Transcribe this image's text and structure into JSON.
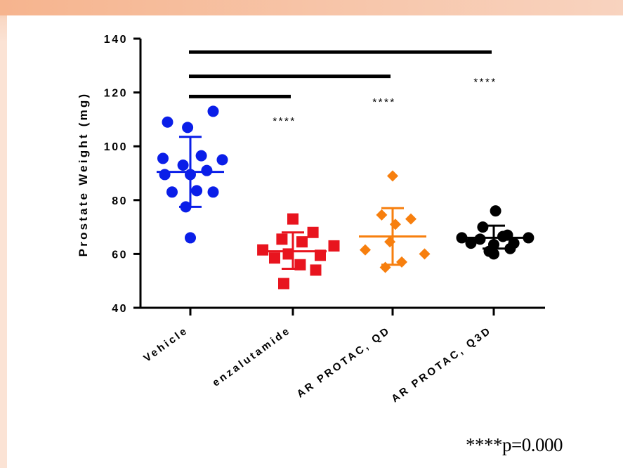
{
  "colors": {
    "background": "#fbe3d5",
    "panel": "#ffffff",
    "Vehicle": "#0a1ee8",
    "enzalutamide": "#e8141e",
    "AR PROTAC, QD": "#f77f0e",
    "AR PROTAC, Q3D": "#000000"
  },
  "footnote": {
    "stars": "****",
    "text": "p=0.000"
  },
  "chart_data": {
    "type": "scatter",
    "title": "",
    "xlabel": "",
    "ylabel": "Prostate Weight (mg)",
    "ylim": [
      40,
      140
    ],
    "yticks": [
      "40",
      "60",
      "80",
      "100",
      "120",
      "140"
    ],
    "ytick_values": [
      40,
      60,
      80,
      100,
      120,
      140
    ],
    "categories": [
      "Vehicle",
      "enzalutamide",
      "AR PROTAC, QD",
      "AR PROTAC, Q3D"
    ],
    "grid": false,
    "legend": "none",
    "series": [
      {
        "category": "Vehicle",
        "marker": "circle",
        "mean": 90.5,
        "sd_upper": 103.5,
        "sd_lower": 77.5,
        "points": [
          [
            -0.25,
            109
          ],
          [
            -0.03,
            107
          ],
          [
            0.25,
            113
          ],
          [
            -0.3,
            95.5
          ],
          [
            -0.08,
            93
          ],
          [
            0.12,
            96.5
          ],
          [
            0.35,
            95
          ],
          [
            -0.28,
            89.5
          ],
          [
            0.0,
            89.5
          ],
          [
            0.18,
            91
          ],
          [
            -0.2,
            83
          ],
          [
            0.07,
            83.5
          ],
          [
            0.25,
            83
          ],
          [
            -0.05,
            77.5
          ],
          [
            0.0,
            66
          ]
        ]
      },
      {
        "category": "enzalutamide",
        "marker": "square",
        "mean": 61,
        "sd_upper": 68,
        "sd_lower": 54.5,
        "points": [
          [
            0.0,
            73
          ],
          [
            0.22,
            68
          ],
          [
            -0.12,
            65.5
          ],
          [
            0.1,
            64.5
          ],
          [
            -0.33,
            61.5
          ],
          [
            0.45,
            63
          ],
          [
            -0.05,
            60
          ],
          [
            0.3,
            59.5
          ],
          [
            -0.2,
            58.5
          ],
          [
            0.08,
            56
          ],
          [
            0.25,
            54
          ],
          [
            -0.1,
            49
          ]
        ]
      },
      {
        "category": "AR PROTAC, QD",
        "marker": "diamond",
        "mean": 66.5,
        "sd_upper": 77,
        "sd_lower": 56,
        "points": [
          [
            0.0,
            89
          ],
          [
            -0.12,
            74.5
          ],
          [
            0.2,
            73
          ],
          [
            0.03,
            71
          ],
          [
            -0.03,
            64.5
          ],
          [
            -0.3,
            61.5
          ],
          [
            0.35,
            60
          ],
          [
            0.1,
            57
          ],
          [
            -0.08,
            55
          ]
        ]
      },
      {
        "category": "AR PROTAC, Q3D",
        "marker": "circle",
        "mean": 66,
        "sd_upper": 70.5,
        "sd_lower": 62,
        "points": [
          [
            0.02,
            76
          ],
          [
            -0.12,
            70
          ],
          [
            0.15,
            67
          ],
          [
            -0.35,
            66
          ],
          [
            -0.15,
            65.5
          ],
          [
            0.1,
            66.5
          ],
          [
            0.38,
            66
          ],
          [
            -0.25,
            64
          ],
          [
            0.0,
            63.5
          ],
          [
            0.22,
            64
          ],
          [
            -0.05,
            61
          ],
          [
            0.18,
            62
          ],
          [
            0.0,
            60
          ]
        ]
      }
    ],
    "comparisons": [
      {
        "from": "Vehicle",
        "to": "enzalutamide",
        "y": 118.5,
        "label": "****",
        "label_y": 110
      },
      {
        "from": "Vehicle",
        "to": "AR PROTAC, QD",
        "y": 126,
        "label": "****",
        "label_y": 117
      },
      {
        "from": "Vehicle",
        "to": "AR PROTAC, Q3D",
        "y": 135,
        "label": "****",
        "label_y": 124.5
      }
    ]
  }
}
